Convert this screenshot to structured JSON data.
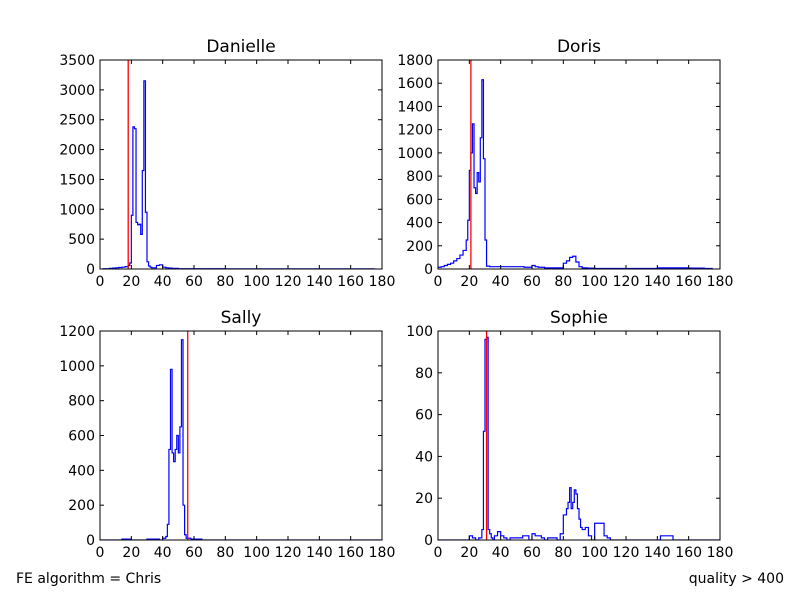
{
  "footer": {
    "left": "FE algorithm = Chris",
    "right": "quality > 400"
  },
  "colors": {
    "histogram": "#0000ff",
    "marker": "#ff0000",
    "axes": "#000000"
  },
  "chart_data": [
    {
      "type": "step",
      "title": "Danielle",
      "xlim": [
        0,
        180
      ],
      "ylim": [
        0,
        3500
      ],
      "xticks": [
        0,
        20,
        40,
        60,
        80,
        100,
        120,
        140,
        160,
        180
      ],
      "yticks": [
        0,
        500,
        1000,
        1500,
        2000,
        2500,
        3000,
        3500
      ],
      "xtick_labels": [
        "0",
        "20",
        "40",
        "60",
        "80",
        "100",
        "120",
        "140",
        "160",
        "180"
      ],
      "ytick_labels": [
        "0",
        "500",
        "1000",
        "1500",
        "2000",
        "2500",
        "3000",
        "3500"
      ],
      "marker_x": 18,
      "series": [
        {
          "x": [
            2,
            4,
            6,
            8,
            10,
            12,
            14,
            16,
            18,
            19,
            20,
            21,
            22,
            23,
            24,
            25,
            26,
            27,
            28,
            29,
            30,
            31,
            32,
            33,
            34,
            36,
            38,
            40,
            42,
            44,
            46,
            48,
            50,
            60,
            70,
            80,
            90,
            100,
            120,
            140,
            160,
            175
          ],
          "values": [
            5,
            5,
            10,
            15,
            20,
            25,
            30,
            40,
            60,
            100,
            900,
            2380,
            2350,
            780,
            740,
            750,
            580,
            1650,
            3150,
            950,
            120,
            50,
            30,
            20,
            20,
            60,
            70,
            30,
            20,
            15,
            10,
            10,
            5,
            5,
            5,
            3,
            3,
            2,
            2,
            2,
            2,
            0
          ]
        }
      ]
    },
    {
      "type": "step",
      "title": "Doris",
      "xlim": [
        0,
        180
      ],
      "ylim": [
        0,
        1800
      ],
      "xticks": [
        0,
        20,
        40,
        60,
        80,
        100,
        120,
        140,
        160,
        180
      ],
      "yticks": [
        0,
        200,
        400,
        600,
        800,
        1000,
        1200,
        1400,
        1600,
        1800
      ],
      "xtick_labels": [
        "0",
        "20",
        "40",
        "60",
        "80",
        "100",
        "120",
        "140",
        "160",
        "180"
      ],
      "ytick_labels": [
        "0",
        "200",
        "400",
        "600",
        "800",
        "1000",
        "1200",
        "1400",
        "1600",
        "1800"
      ],
      "marker_x": 21,
      "series": [
        {
          "x": [
            0,
            2,
            4,
            6,
            8,
            10,
            12,
            14,
            16,
            18,
            19,
            20,
            21,
            22,
            23,
            24,
            25,
            26,
            27,
            28,
            29,
            30,
            31,
            32,
            33,
            34,
            40,
            45,
            50,
            55,
            60,
            62,
            64,
            68,
            72,
            76,
            80,
            82,
            84,
            86,
            88,
            90,
            92,
            95,
            100,
            110,
            120,
            130,
            140,
            150,
            160,
            170,
            175
          ],
          "values": [
            15,
            20,
            30,
            40,
            50,
            70,
            90,
            120,
            160,
            250,
            420,
            850,
            1000,
            1250,
            700,
            650,
            830,
            750,
            1130,
            1630,
            950,
            250,
            25,
            25,
            20,
            20,
            20,
            20,
            20,
            15,
            30,
            20,
            15,
            10,
            10,
            10,
            50,
            70,
            100,
            110,
            60,
            20,
            10,
            8,
            5,
            5,
            5,
            5,
            10,
            10,
            8,
            5,
            0
          ]
        }
      ]
    },
    {
      "type": "step",
      "title": "Sally",
      "xlim": [
        0,
        180
      ],
      "ylim": [
        0,
        1200
      ],
      "xticks": [
        0,
        20,
        40,
        60,
        80,
        100,
        120,
        140,
        160,
        180
      ],
      "yticks": [
        0,
        200,
        400,
        600,
        800,
        1000,
        1200
      ],
      "xtick_labels": [
        "0",
        "20",
        "40",
        "60",
        "80",
        "100",
        "120",
        "140",
        "160",
        "180"
      ],
      "ytick_labels": [
        "0",
        "200",
        "400",
        "600",
        "800",
        "1000",
        "1200"
      ],
      "marker_x": 56,
      "series": [
        {
          "x": [
            0,
            10,
            14,
            20,
            30,
            38,
            40,
            42,
            43,
            44,
            45,
            46,
            47,
            48,
            49,
            50,
            51,
            52,
            53,
            54,
            55,
            56,
            58,
            60,
            65,
            180
          ],
          "values": [
            0,
            0,
            5,
            0,
            5,
            0,
            10,
            20,
            90,
            520,
            980,
            500,
            450,
            520,
            600,
            500,
            650,
            1150,
            200,
            30,
            10,
            10,
            5,
            5,
            0,
            0
          ]
        }
      ]
    },
    {
      "type": "step",
      "title": "Sophie",
      "xlim": [
        0,
        180
      ],
      "ylim": [
        0,
        100
      ],
      "xticks": [
        0,
        20,
        40,
        60,
        80,
        100,
        120,
        140,
        160,
        180
      ],
      "yticks": [
        0,
        20,
        40,
        60,
        80,
        100
      ],
      "xtick_labels": [
        "0",
        "20",
        "40",
        "60",
        "80",
        "100",
        "120",
        "140",
        "160",
        "180"
      ],
      "ytick_labels": [
        "0",
        "20",
        "40",
        "60",
        "80",
        "100"
      ],
      "marker_x": 31,
      "series": [
        {
          "x": [
            0,
            20,
            22,
            24,
            26,
            28,
            29,
            30,
            31,
            32,
            33,
            34,
            35,
            36,
            38,
            40,
            42,
            44,
            46,
            50,
            54,
            58,
            60,
            62,
            64,
            66,
            68,
            70,
            72,
            74,
            76,
            78,
            80,
            82,
            83,
            84,
            85,
            86,
            87,
            88,
            89,
            90,
            91,
            92,
            94,
            96,
            98,
            100,
            102,
            104,
            106,
            108,
            110,
            112,
            120,
            130,
            142,
            146,
            150,
            180
          ],
          "values": [
            0,
            2,
            1,
            0,
            1,
            5,
            52,
            96,
            97,
            5,
            3,
            1,
            0,
            2,
            4,
            2,
            1,
            0,
            1,
            1,
            2,
            0,
            3,
            2,
            2,
            1,
            0,
            1,
            1,
            1,
            0,
            3,
            12,
            15,
            18,
            25,
            15,
            18,
            24,
            22,
            15,
            10,
            6,
            5,
            6,
            2,
            0,
            8,
            8,
            8,
            2,
            1,
            0,
            0,
            0,
            0,
            2,
            2,
            0,
            0
          ]
        }
      ]
    }
  ]
}
